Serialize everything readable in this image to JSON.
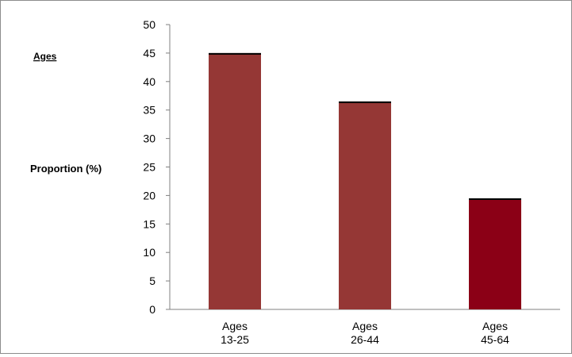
{
  "chart_data": {
    "type": "bar",
    "categories": [
      [
        "Ages",
        "13-25"
      ],
      [
        "Ages",
        "26-44"
      ],
      [
        "Ages",
        "45-64"
      ]
    ],
    "series": [
      {
        "name": "Ages",
        "values": [
          45,
          36.5,
          19.5
        ]
      }
    ],
    "title": "",
    "xlabel": "",
    "ylabel": "Proportion (%)",
    "ylim": [
      0,
      50
    ],
    "yticks": [
      0,
      5,
      10,
      15,
      20,
      25,
      30,
      35,
      40,
      45,
      50
    ],
    "grid": false,
    "legend": "top-left",
    "colors": {
      "bar": "#953735",
      "bar_last": "#8b0016",
      "bar_top": "#000000",
      "axis": "#808080",
      "border": "#8c8c8c"
    }
  }
}
